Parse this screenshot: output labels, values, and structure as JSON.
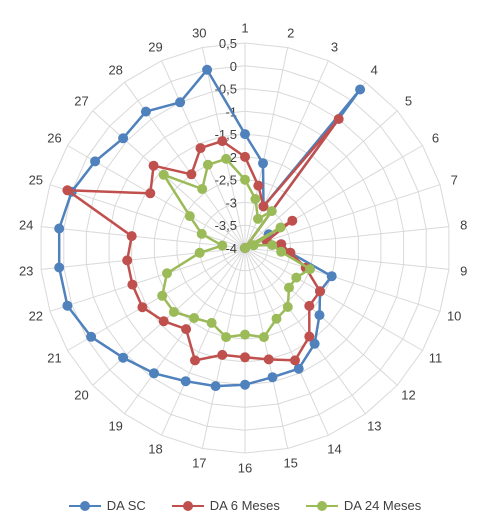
{
  "chart_data": {
    "type": "radar",
    "categories": [
      "1",
      "2",
      "3",
      "4",
      "5",
      "6",
      "7",
      "8",
      "9",
      "10",
      "11",
      "12",
      "13",
      "14",
      "15",
      "16",
      "17",
      "18",
      "19",
      "20",
      "21",
      "22",
      "23",
      "24",
      "25",
      "26",
      "27",
      "28",
      "29",
      "30"
    ],
    "radial_ticks": [
      "0,5",
      "0",
      "-0,5",
      "-1",
      "-1,5",
      "-2",
      "-2,5",
      "-3",
      "-3,5",
      "-4"
    ],
    "rlim": [
      -4,
      0.5
    ],
    "legend_position": "bottom",
    "series": [
      {
        "name": "DA SC",
        "color": "#4F81BD",
        "values": [
          -1.5,
          -2.1,
          -3.0,
          0.3,
          -4.0,
          -3.4,
          -3.5,
          -3.2,
          -3.0,
          -2.0,
          -2.1,
          -1.8,
          -1.4,
          -1.1,
          -1.1,
          -1.0,
          -0.9,
          -0.8,
          -0.6,
          -0.4,
          -0.1,
          0.1,
          0.1,
          0.1,
          0.0,
          -0.2,
          -0.4,
          -0.3,
          -0.5,
          0.0
        ]
      },
      {
        "name": "DA 6 Meses",
        "color": "#C0504D",
        "values": [
          -2.0,
          -2.6,
          -3.0,
          -0.5,
          -4.0,
          -2.8,
          -3.5,
          -3.2,
          -3.0,
          -2.6,
          -2.1,
          -2.1,
          -1.6,
          -1.3,
          -1.5,
          -1.6,
          -1.6,
          -1.3,
          -1.8,
          -1.6,
          -1.4,
          -1.4,
          -1.4,
          -1.5,
          0.1,
          -1.6,
          -1.3,
          -2.0,
          -1.6,
          -1.6
        ]
      },
      {
        "name": "DA 24 Meses",
        "color": "#9BBB59",
        "values": [
          -2.5,
          -2.9,
          -3.3,
          -3.0,
          -4.0,
          -3.1,
          -3.8,
          -3.4,
          -3.2,
          -2.5,
          -2.7,
          -2.7,
          -2.4,
          -2.3,
          -2.0,
          -2.1,
          -2.0,
          -2.2,
          -2.1,
          -1.9,
          -1.9,
          -2.2,
          -3.0,
          -3.5,
          -3.0,
          -2.6,
          -1.6,
          -2.4,
          -2.0,
          -2.0
        ]
      }
    ]
  }
}
